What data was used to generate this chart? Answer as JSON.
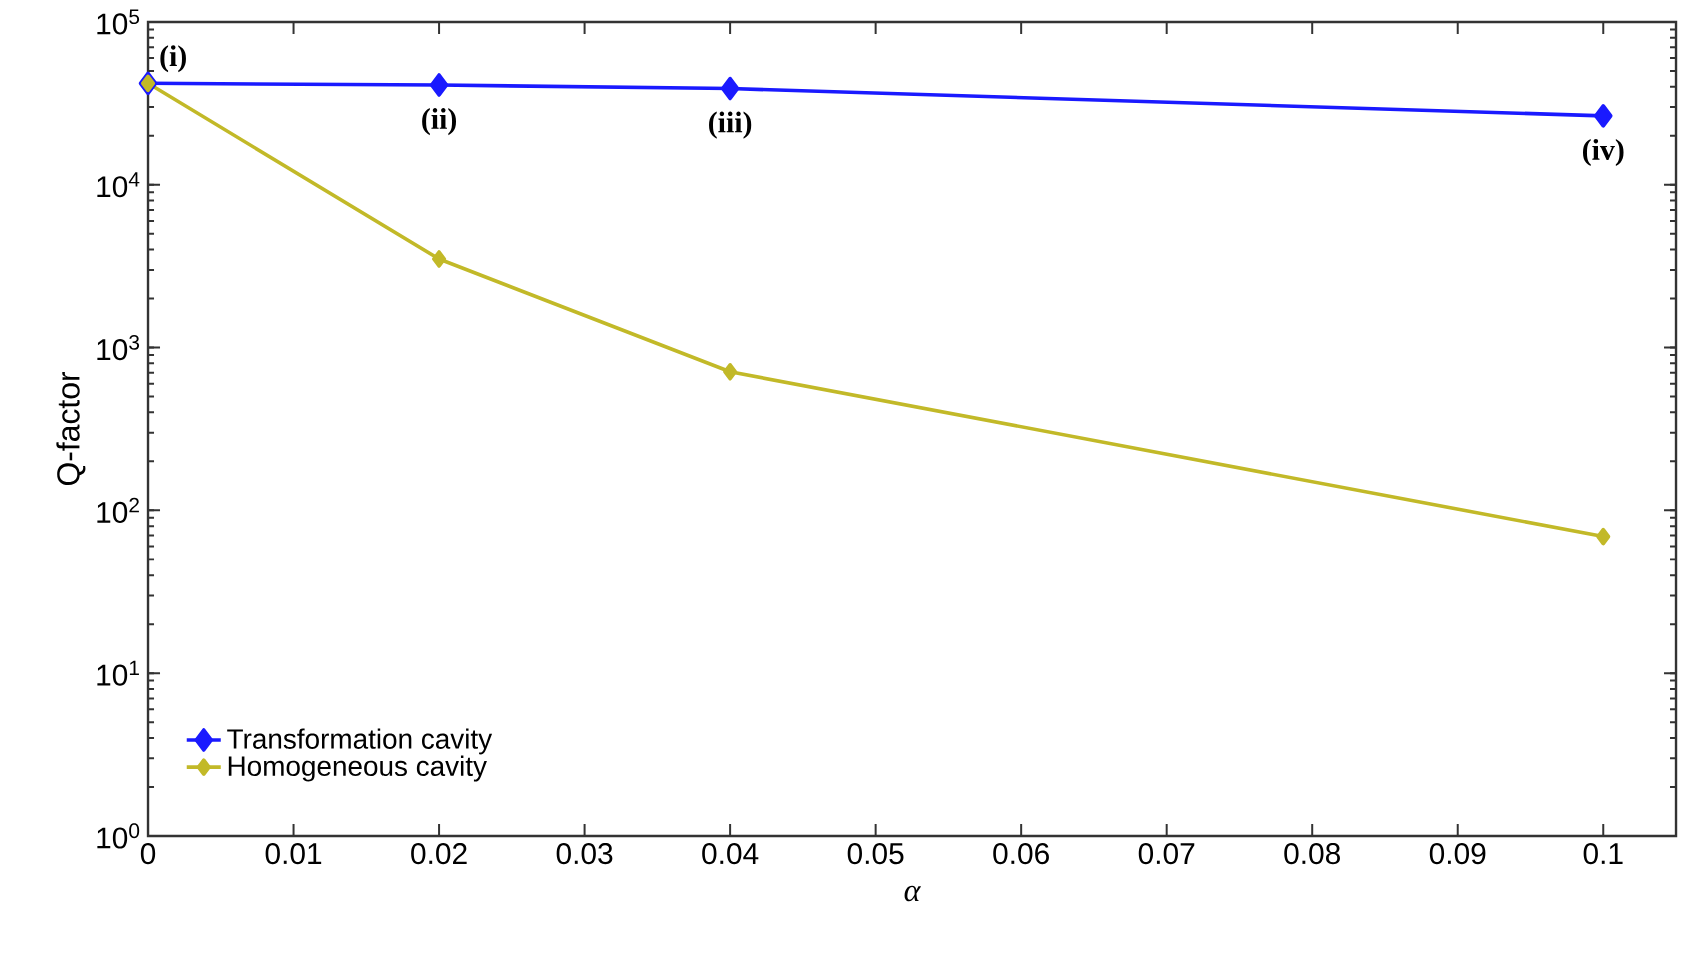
{
  "chart_data": {
    "type": "line",
    "xlabel": "α",
    "ylabel": "Q-factor",
    "x": [
      0,
      0.02,
      0.04,
      0.1
    ],
    "series": [
      {
        "name": "Transformation cavity",
        "color": "#1a1aff",
        "values": [
          42000,
          41000,
          39000,
          26500
        ]
      },
      {
        "name": "Homogeneous cavity",
        "color": "#c2b928",
        "values": [
          42000,
          3500,
          710,
          69
        ]
      }
    ],
    "log": "y",
    "xlim": [
      0,
      0.105
    ],
    "ylim": [
      1,
      100000
    ],
    "xticks": [
      0,
      0.01,
      0.02,
      0.03,
      0.04,
      0.05,
      0.06,
      0.07,
      0.08,
      0.09,
      0.1
    ],
    "yticks": [
      {
        "value": 1,
        "label": "10$^{0}$"
      },
      {
        "value": 10,
        "label": "10$^{1}$"
      },
      {
        "value": 100,
        "label": "10$^{2}$"
      },
      {
        "value": 1000,
        "label": "10$^{3}$"
      },
      {
        "value": 10000,
        "label": "10$^{4}$"
      },
      {
        "value": 100000,
        "label": "10$^{5}$"
      }
    ],
    "annotations": [
      {
        "text": "(i)",
        "x": 0,
        "y": 42000
      },
      {
        "text": "(ii)",
        "x": 0.02,
        "y": 41000
      },
      {
        "text": "(iii)",
        "x": 0.04,
        "y": 39000
      },
      {
        "text": "(iv)",
        "x": 0.1,
        "y": 26500
      }
    ],
    "marker": "diamond",
    "line_style": "solid",
    "legend": "bottom left",
    "grid": false
  }
}
